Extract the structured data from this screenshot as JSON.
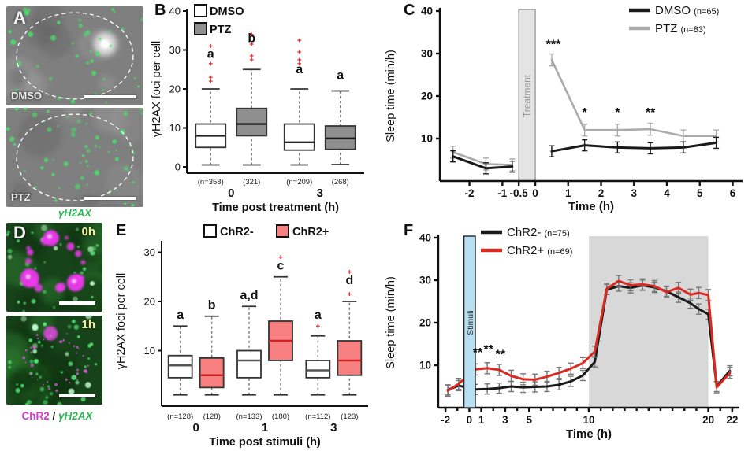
{
  "panels": {
    "A": {
      "label": "A",
      "images": [
        {
          "tag": "DMSO"
        },
        {
          "tag": "PTZ"
        }
      ],
      "caption": "γH2AX",
      "caption_color": "#2fb857"
    },
    "B": {
      "label": "B"
    },
    "C": {
      "label": "C"
    },
    "D": {
      "label": "D",
      "images": [
        {
          "tag": "0h"
        },
        {
          "tag": "1h"
        }
      ],
      "caption": {
        "part1": "ChR2",
        "sep": " / ",
        "part2": "γH2AX"
      },
      "caption_colors": {
        "part1": "#cc3ecc",
        "part2": "#2fb857"
      }
    },
    "E": {
      "label": "E"
    },
    "F": {
      "label": "F"
    }
  },
  "chart_data": [
    {
      "id": "B",
      "type": "box",
      "title": "",
      "ylabel": "γH2AX foci per cell",
      "xlabel": "Time post treatment (h)",
      "ylim": [
        0,
        40
      ],
      "yticks": [
        0,
        10,
        20,
        30,
        40
      ],
      "groups": [
        "0",
        "3"
      ],
      "series": [
        {
          "name": "DMSO",
          "fill": "#ffffff",
          "median_color": "#222222"
        },
        {
          "name": "PTZ",
          "fill": "#8f8f8f",
          "median_color": "#1a1a1a"
        }
      ],
      "boxes": [
        {
          "group": 0,
          "series": 0,
          "n_label": "(n=358)",
          "low": 0.5,
          "q1": 5,
          "median": 8,
          "q3": 11,
          "high": 20,
          "outliers": [
            22,
            23,
            26.5,
            31
          ],
          "letter": "a",
          "letter_y": 28
        },
        {
          "group": 0,
          "series": 1,
          "n_label": "(321)",
          "low": 0.5,
          "q1": 8,
          "median": 11,
          "q3": 15,
          "high": 25,
          "outliers": [
            27.5,
            28.5,
            31.5,
            34
          ],
          "letter": "b",
          "letter_y": 32
        },
        {
          "group": 1,
          "series": 0,
          "n_label": "(n=209)",
          "low": 0.5,
          "q1": 4.3,
          "median": 6.3,
          "q3": 11,
          "high": 20,
          "outliers": [
            26.5,
            27.5,
            29.5,
            32.5
          ],
          "letter": "a",
          "letter_y": 24
        },
        {
          "group": 1,
          "series": 1,
          "n_label": "(268)",
          "low": 0.6,
          "q1": 4.5,
          "median": 7.3,
          "q3": 10.5,
          "high": 19.5,
          "outliers": [],
          "letter": "a",
          "letter_y": 22.5
        }
      ]
    },
    {
      "id": "C",
      "type": "line",
      "title": "",
      "ylabel": "Sleep time (min/h)",
      "xlabel": "Time (h)",
      "ylim": [
        0,
        40
      ],
      "yticks": [
        10,
        20,
        30,
        40
      ],
      "xlim": [
        -2.9,
        6.3
      ],
      "xticks": [
        -2,
        -1,
        -0.5,
        0,
        1,
        2,
        3,
        4,
        5,
        6
      ],
      "bands": [
        {
          "label": "Treatment",
          "x0": -0.5,
          "x1": 0,
          "fill": "#e4e4e4",
          "stroke": "#9a9a9a",
          "text_color": "#9a9a9a",
          "over": false
        }
      ],
      "series": [
        {
          "name": "DMSO",
          "n_label": "(n=65)",
          "color": "#1a1a1a",
          "err_color": "#1a1a1a",
          "width": 3,
          "x": [
            -2.5,
            -1.5,
            -0.7,
            0.5,
            1.5,
            2.5,
            3.5,
            4.5,
            5.5
          ],
          "y": [
            5.8,
            3.0,
            3.4,
            7.0,
            8.4,
            7.9,
            7.7,
            7.9,
            9.0
          ],
          "err": 1.3,
          "gap_after": 2
        },
        {
          "name": "PTZ",
          "n_label": "(n=83)",
          "color": "#ababab",
          "err_color": "#ababab",
          "width": 2.6,
          "x": [
            -2.5,
            -1.5,
            -0.7,
            0.5,
            1.5,
            2.5,
            3.5,
            4.5,
            5.5
          ],
          "y": [
            6.8,
            4.0,
            3.8,
            28.5,
            12.0,
            12.0,
            12.2,
            10.6,
            10.6
          ],
          "err": 1.4,
          "gap_after": 2
        }
      ],
      "annotations": [
        {
          "text": "***",
          "x": 0.55,
          "y": 31.2
        },
        {
          "text": "*",
          "x": 1.5,
          "y": 15.2
        },
        {
          "text": "*",
          "x": 2.5,
          "y": 15.2
        },
        {
          "text": "**",
          "x": 3.5,
          "y": 15.2
        }
      ]
    },
    {
      "id": "E",
      "type": "box",
      "title": "",
      "ylabel": "γH2AX foci per cell",
      "xlabel": "Time post stimuli (h)",
      "ylim": [
        0,
        32
      ],
      "yticks": [
        10,
        20,
        30
      ],
      "groups": [
        "0",
        "1",
        "3"
      ],
      "series": [
        {
          "name": "ChR2-",
          "fill": "#ffffff",
          "median_color": "#555555"
        },
        {
          "name": "ChR2+",
          "fill": "#f98080",
          "median_color": "#cc2222"
        }
      ],
      "boxes": [
        {
          "group": 0,
          "series": 0,
          "n_label": "(n=128)",
          "low": 1,
          "q1": 4.5,
          "median": 7,
          "q3": 9,
          "high": 15,
          "outliers": [],
          "letter": "a",
          "letter_y": 16.5
        },
        {
          "group": 0,
          "series": 1,
          "n_label": "(128)",
          "low": 1,
          "q1": 2.5,
          "median": 5,
          "q3": 8.5,
          "high": 17,
          "outliers": [],
          "letter": "b",
          "letter_y": 18.5
        },
        {
          "group": 1,
          "series": 0,
          "n_label": "(n=133)",
          "low": 1,
          "q1": 4.5,
          "median": 8,
          "q3": 10,
          "high": 19,
          "outliers": [],
          "letter": "a,d",
          "letter_y": 20.5
        },
        {
          "group": 1,
          "series": 1,
          "n_label": "(180)",
          "low": 1,
          "q1": 8,
          "median": 12,
          "q3": 16,
          "high": 25,
          "outliers": [
            29
          ],
          "letter": "c",
          "letter_y": 26.5
        },
        {
          "group": 2,
          "series": 0,
          "n_label": "(n=112)",
          "low": 1,
          "q1": 4.5,
          "median": 6,
          "q3": 8,
          "high": 13,
          "outliers": [
            15
          ],
          "letter": "a",
          "letter_y": 16.5
        },
        {
          "group": 2,
          "series": 1,
          "n_label": "(123)",
          "low": 1,
          "q1": 5,
          "median": 8,
          "q3": 12,
          "high": 20,
          "outliers": [
            21.5,
            26
          ],
          "letter": "d",
          "letter_y": 23.5
        }
      ]
    },
    {
      "id": "F",
      "type": "line",
      "title": "",
      "ylabel": "Sleep time (min/h)",
      "xlabel": "Time (h)",
      "ylim": [
        0,
        40
      ],
      "yticks": [
        10,
        20,
        30,
        40
      ],
      "xlim": [
        -2.6,
        22.6
      ],
      "xticks": [
        -2,
        0,
        1,
        3,
        5,
        10,
        20,
        22
      ],
      "xticks_minor_step": 1,
      "bands": [
        {
          "label": "",
          "x0": 10,
          "x1": 20,
          "fill": "#d8d8d8",
          "stroke": "none",
          "text_color": "#888888",
          "over": false
        },
        {
          "label": "Stimuli",
          "x0": -0.45,
          "x1": 0.5,
          "fill": "#b7def1",
          "stroke": "#222222",
          "text_color": "#333333",
          "over": true
        }
      ],
      "series": [
        {
          "name": "ChR2-",
          "n_label": "(n=75)",
          "color": "#1a1a1a",
          "err_color": "#777777",
          "width": 3,
          "x": [
            -1.8,
            -0.9,
            0.5,
            1.5,
            2.5,
            3.5,
            4.5,
            5.5,
            6.5,
            7.5,
            8.5,
            9.5,
            10.5,
            11.5,
            12.5,
            13.5,
            14.5,
            15.5,
            16.5,
            17.5,
            18.5,
            19.2,
            20.0,
            20.7,
            21.8
          ],
          "y": [
            4.2,
            5.2,
            4.3,
            4.4,
            4.6,
            5.0,
            4.8,
            4.9,
            5.0,
            5.4,
            6.2,
            7.6,
            10.8,
            27.8,
            28.6,
            28.2,
            28.8,
            28.3,
            27.4,
            26.0,
            24.6,
            23.2,
            22.0,
            5.0,
            8.7
          ],
          "err": 1.2
        },
        {
          "name": "ChR2+",
          "n_label": "(n=69)",
          "color": "#d82a20",
          "err_color": "#777777",
          "width": 3,
          "x": [
            -1.8,
            -0.9,
            0.5,
            1.5,
            2.5,
            3.5,
            4.5,
            5.5,
            6.5,
            7.5,
            8.5,
            9.5,
            10.5,
            11.5,
            12.5,
            13.5,
            14.5,
            15.5,
            16.5,
            17.5,
            18.5,
            19.2,
            20.0,
            20.7,
            21.8
          ],
          "y": [
            4.0,
            5.6,
            9.0,
            9.3,
            8.9,
            7.5,
            6.7,
            6.6,
            7.3,
            8.2,
            9.2,
            10.5,
            13.2,
            28.0,
            29.8,
            28.8,
            29.0,
            28.6,
            27.2,
            28.2,
            26.6,
            27.0,
            26.5,
            4.8,
            8.2
          ],
          "err": 1.3
        }
      ],
      "annotations": [
        {
          "text": "**",
          "x": 0.7,
          "y": 12.0
        },
        {
          "text": "**",
          "x": 1.6,
          "y": 12.8
        },
        {
          "text": "**",
          "x": 2.6,
          "y": 11.6
        }
      ]
    }
  ]
}
